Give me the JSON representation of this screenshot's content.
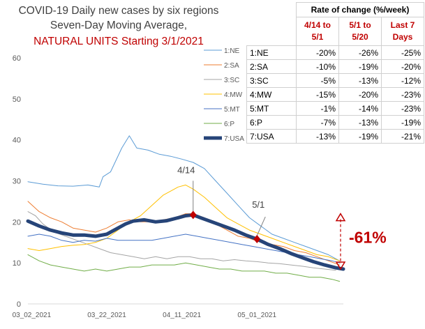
{
  "title_lines": {
    "line1": "COVID-19 Daily new cases by six regions",
    "line2": "Seven-Day Moving Average",
    "line2_suffix": ",",
    "line3": "NATURAL UNITS Starting 3/1/2021"
  },
  "table": {
    "title": "Rate of change (%/week)",
    "col1": "4/14 to 5/1",
    "col2": "5/1  to 5/20",
    "col3": "Last 7 Days",
    "rows": [
      {
        "region": "1:NE",
        "c1": "-20%",
        "c2": "-26%",
        "c3": "-25%"
      },
      {
        "region": "2:SA",
        "c1": "-10%",
        "c2": "-19%",
        "c3": "-20%"
      },
      {
        "region": "3:SC",
        "c1": "-5%",
        "c2": "-13%",
        "c3": "-12%"
      },
      {
        "region": "4:MW",
        "c1": "-15%",
        "c2": "-20%",
        "c3": "-23%"
      },
      {
        "region": "5:MT",
        "c1": "-1%",
        "c2": "-14%",
        "c3": "-23%"
      },
      {
        "region": "6:P",
        "c1": "-7%",
        "c2": "-13%",
        "c3": "-19%"
      },
      {
        "region": "7:USA",
        "c1": "-13%",
        "c2": "-19%",
        "c3": "-21%"
      }
    ]
  },
  "annotations": {
    "a414": "4/14",
    "a51": "5/1",
    "drop": "-61%"
  },
  "colors": {
    "NE": "#5b9bd5",
    "SA": "#ed7d31",
    "SC": "#a5a5a5",
    "MW": "#ffc000",
    "MT": "#4472c4",
    "P": "#70ad47",
    "USA": "#264478",
    "accent": "#c00000"
  },
  "chart_data": {
    "type": "line",
    "ylim": [
      0,
      60
    ],
    "yticks": [
      0,
      10,
      20,
      30,
      40,
      50,
      60
    ],
    "xlim": [
      0,
      84
    ],
    "xticks": [
      {
        "x": 1,
        "label": "03_02_2021"
      },
      {
        "x": 21,
        "label": "03_22_2021"
      },
      {
        "x": 41,
        "label": "04_11_2021"
      },
      {
        "x": 61,
        "label": "05_01_2021"
      }
    ],
    "xlabel": "",
    "ylabel": "",
    "legend_position": "top-right",
    "series": [
      {
        "name": "1:NE",
        "color_key": "NE",
        "width": 1,
        "points": [
          [
            0,
            29.8
          ],
          [
            4,
            29.2
          ],
          [
            8,
            28.8
          ],
          [
            12,
            28.7
          ],
          [
            16,
            29.0
          ],
          [
            19,
            28.5
          ],
          [
            20,
            31.0
          ],
          [
            22,
            32.2
          ],
          [
            25,
            38.0
          ],
          [
            27,
            41.0
          ],
          [
            29,
            38.0
          ],
          [
            32,
            37.5
          ],
          [
            35,
            36.5
          ],
          [
            38,
            36.0
          ],
          [
            41,
            35.3
          ],
          [
            44,
            34.5
          ],
          [
            47,
            33.0
          ],
          [
            50,
            30.0
          ],
          [
            53,
            27.0
          ],
          [
            56,
            24.0
          ],
          [
            59,
            21.0
          ],
          [
            62,
            19.0
          ],
          [
            65,
            17.0
          ],
          [
            68,
            16.0
          ],
          [
            71,
            15.0
          ],
          [
            74,
            14.0
          ],
          [
            77,
            13.0
          ],
          [
            80,
            12.0
          ],
          [
            83,
            10.5
          ]
        ]
      },
      {
        "name": "2:SA",
        "color_key": "SA",
        "width": 1,
        "points": [
          [
            0,
            25.0
          ],
          [
            3,
            22.5
          ],
          [
            6,
            21.0
          ],
          [
            9,
            20.0
          ],
          [
            12,
            18.5
          ],
          [
            15,
            18.0
          ],
          [
            18,
            17.5
          ],
          [
            21,
            18.5
          ],
          [
            24,
            20.0
          ],
          [
            27,
            20.5
          ],
          [
            30,
            20.0
          ],
          [
            33,
            20.0
          ],
          [
            36,
            20.5
          ],
          [
            39,
            21.0
          ],
          [
            42,
            22.0
          ],
          [
            44,
            22.0
          ],
          [
            47,
            21.0
          ],
          [
            50,
            19.5
          ],
          [
            53,
            18.0
          ],
          [
            56,
            16.5
          ],
          [
            59,
            16.0
          ],
          [
            62,
            15.0
          ],
          [
            65,
            14.5
          ],
          [
            68,
            14.0
          ],
          [
            71,
            13.0
          ],
          [
            74,
            12.5
          ],
          [
            77,
            11.5
          ],
          [
            80,
            10.5
          ],
          [
            83,
            9.5
          ]
        ]
      },
      {
        "name": "3:SC",
        "color_key": "SC",
        "width": 1,
        "points": [
          [
            0,
            22.5
          ],
          [
            2,
            21.5
          ],
          [
            4,
            19.5
          ],
          [
            7,
            17.5
          ],
          [
            10,
            16.5
          ],
          [
            13,
            15.5
          ],
          [
            16,
            14.5
          ],
          [
            19,
            13.5
          ],
          [
            22,
            12.5
          ],
          [
            25,
            12.0
          ],
          [
            28,
            11.5
          ],
          [
            31,
            11.0
          ],
          [
            34,
            11.5
          ],
          [
            37,
            11.0
          ],
          [
            40,
            11.5
          ],
          [
            43,
            11.5
          ],
          [
            46,
            11.0
          ],
          [
            49,
            11.0
          ],
          [
            52,
            10.5
          ],
          [
            55,
            10.8
          ],
          [
            58,
            10.5
          ],
          [
            61,
            10.3
          ],
          [
            64,
            10.0
          ],
          [
            67,
            9.8
          ],
          [
            70,
            9.5
          ],
          [
            73,
            9.2
          ],
          [
            76,
            8.8
          ],
          [
            79,
            8.5
          ],
          [
            82,
            8.2
          ]
        ]
      },
      {
        "name": "4:MW",
        "color_key": "MW",
        "width": 1,
        "points": [
          [
            0,
            13.5
          ],
          [
            3,
            13.0
          ],
          [
            6,
            13.5
          ],
          [
            9,
            14.0
          ],
          [
            12,
            14.3
          ],
          [
            15,
            14.5
          ],
          [
            18,
            15.0
          ],
          [
            21,
            16.0
          ],
          [
            24,
            18.0
          ],
          [
            27,
            20.0
          ],
          [
            30,
            21.5
          ],
          [
            33,
            24.0
          ],
          [
            36,
            26.5
          ],
          [
            38,
            27.5
          ],
          [
            40,
            28.5
          ],
          [
            42,
            29.0
          ],
          [
            44,
            28.0
          ],
          [
            47,
            26.0
          ],
          [
            50,
            23.5
          ],
          [
            53,
            21.0
          ],
          [
            56,
            19.5
          ],
          [
            59,
            18.0
          ],
          [
            62,
            17.0
          ],
          [
            65,
            16.0
          ],
          [
            68,
            15.0
          ],
          [
            71,
            14.0
          ],
          [
            74,
            13.0
          ],
          [
            77,
            12.0
          ],
          [
            80,
            11.5
          ],
          [
            83,
            10.5
          ]
        ]
      },
      {
        "name": "5:MT",
        "color_key": "MT",
        "width": 1,
        "points": [
          [
            0,
            16.5
          ],
          [
            3,
            17.0
          ],
          [
            6,
            16.5
          ],
          [
            9,
            15.5
          ],
          [
            12,
            15.0
          ],
          [
            15,
            15.5
          ],
          [
            18,
            15.3
          ],
          [
            21,
            16.0
          ],
          [
            24,
            15.5
          ],
          [
            27,
            15.5
          ],
          [
            30,
            15.5
          ],
          [
            33,
            15.5
          ],
          [
            36,
            16.0
          ],
          [
            39,
            16.5
          ],
          [
            42,
            17.0
          ],
          [
            45,
            16.5
          ],
          [
            48,
            16.0
          ],
          [
            51,
            15.5
          ],
          [
            54,
            15.0
          ],
          [
            57,
            14.5
          ],
          [
            60,
            14.0
          ],
          [
            63,
            13.5
          ],
          [
            66,
            13.0
          ],
          [
            69,
            12.5
          ],
          [
            72,
            12.0
          ],
          [
            75,
            11.5
          ],
          [
            78,
            11.0
          ],
          [
            81,
            10.5
          ],
          [
            83,
            10.0
          ]
        ]
      },
      {
        "name": "6:P",
        "color_key": "P",
        "width": 1,
        "points": [
          [
            0,
            12.0
          ],
          [
            3,
            10.5
          ],
          [
            6,
            9.5
          ],
          [
            9,
            9.0
          ],
          [
            12,
            8.5
          ],
          [
            15,
            8.0
          ],
          [
            18,
            8.5
          ],
          [
            21,
            8.0
          ],
          [
            24,
            8.5
          ],
          [
            27,
            9.0
          ],
          [
            30,
            9.0
          ],
          [
            33,
            9.5
          ],
          [
            36,
            9.5
          ],
          [
            39,
            9.5
          ],
          [
            42,
            10.0
          ],
          [
            45,
            9.5
          ],
          [
            48,
            9.0
          ],
          [
            51,
            8.5
          ],
          [
            54,
            8.5
          ],
          [
            57,
            8.0
          ],
          [
            60,
            8.0
          ],
          [
            63,
            8.0
          ],
          [
            66,
            7.5
          ],
          [
            69,
            7.5
          ],
          [
            72,
            7.0
          ],
          [
            75,
            6.5
          ],
          [
            78,
            6.5
          ],
          [
            81,
            6.0
          ],
          [
            83,
            5.5
          ]
        ]
      },
      {
        "name": "7:USA",
        "color_key": "USA",
        "width": 5,
        "points": [
          [
            0,
            20.2
          ],
          [
            3,
            19.0
          ],
          [
            6,
            18.0
          ],
          [
            9,
            17.3
          ],
          [
            12,
            16.8
          ],
          [
            15,
            16.8
          ],
          [
            18,
            16.5
          ],
          [
            21,
            17.0
          ],
          [
            24,
            18.5
          ],
          [
            26,
            19.5
          ],
          [
            28,
            20.2
          ],
          [
            31,
            20.5
          ],
          [
            34,
            20.0
          ],
          [
            37,
            20.3
          ],
          [
            40,
            21.0
          ],
          [
            42,
            21.5
          ],
          [
            44,
            21.7
          ],
          [
            46,
            21.0
          ],
          [
            49,
            20.0
          ],
          [
            52,
            19.0
          ],
          [
            55,
            18.0
          ],
          [
            58,
            16.8
          ],
          [
            61,
            15.8
          ],
          [
            64,
            14.5
          ],
          [
            67,
            13.5
          ],
          [
            70,
            12.3
          ],
          [
            73,
            11.3
          ],
          [
            76,
            10.3
          ],
          [
            79,
            9.5
          ],
          [
            82,
            8.8
          ],
          [
            84,
            8.5
          ]
        ]
      }
    ],
    "markers": [
      {
        "x": 44,
        "y": 21.7,
        "label_key": "a414"
      },
      {
        "x": 61,
        "y": 15.8,
        "label_key": "a51"
      }
    ],
    "drop_range": {
      "y_top": 22.0,
      "y_bottom": 8.5
    }
  }
}
